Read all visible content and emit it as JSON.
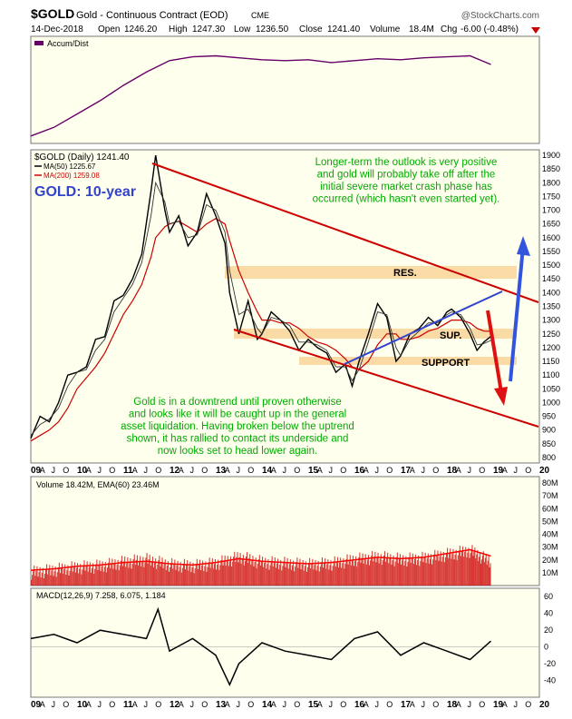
{
  "header": {
    "symbol": "$GOLD",
    "name": "Gold - Continuous Contract (EOD)",
    "exchange": "CME",
    "brand": "@StockCharts.com",
    "date": "14-Dec-2018",
    "open_label": "Open",
    "open": "1246.20",
    "high_label": "High",
    "high": "1247.30",
    "low_label": "Low",
    "low": "1236.50",
    "close_label": "Close",
    "close": "1241.40",
    "volume_label": "Volume",
    "volume": "18.4M",
    "chg_label": "Chg",
    "chg": "-6.00 (-0.48%)"
  },
  "colors": {
    "panel_bg": "#ffffee",
    "accum": "#660066",
    "price": "#000000",
    "ma50": "#000000",
    "ma200": "#cc0000",
    "channel": "#cc0000",
    "uptrend": "#3344cc",
    "band": "#f8ce8c",
    "annotation": "#00aa00",
    "blue_label": "#3344cc",
    "volume_bars": "#cc0000",
    "ema_line": "#ff0000",
    "arrow_up": "#3355dd",
    "arrow_down": "#dd1111"
  },
  "chart_data": [
    {
      "type": "line",
      "panel": "accum",
      "legend": "Accum/Dist",
      "x": [
        2009.0,
        2009.5,
        2010.0,
        2010.5,
        2011.0,
        2011.5,
        2012.0,
        2012.5,
        2013.0,
        2013.5,
        2014.0,
        2014.5,
        2015.0,
        2015.5,
        2016.0,
        2016.5,
        2017.0,
        2017.5,
        2018.0,
        2018.5,
        2018.95
      ],
      "values": [
        5,
        14,
        28,
        42,
        58,
        72,
        84,
        88,
        89,
        87,
        85,
        84,
        85,
        82,
        84,
        86,
        85,
        87,
        88,
        89,
        80
      ]
    },
    {
      "type": "line",
      "panel": "price",
      "legend": "$GOLD (Daily) 1241.40",
      "ma50_legend": "MA(50) 1225.67",
      "ma200_legend": "MA(200) 1259.08",
      "title": "GOLD: 10-year",
      "x": [
        2009.0,
        2009.2,
        2009.4,
        2009.6,
        2009.8,
        2010.0,
        2010.2,
        2010.4,
        2010.6,
        2010.8,
        2011.0,
        2011.2,
        2011.4,
        2011.6,
        2011.7,
        2011.9,
        2012.0,
        2012.2,
        2012.4,
        2012.6,
        2012.8,
        2013.0,
        2013.2,
        2013.3,
        2013.5,
        2013.7,
        2013.9,
        2014.0,
        2014.2,
        2014.4,
        2014.6,
        2014.8,
        2015.0,
        2015.2,
        2015.4,
        2015.6,
        2015.8,
        2015.95,
        2016.1,
        2016.3,
        2016.5,
        2016.7,
        2016.9,
        2017.0,
        2017.2,
        2017.4,
        2017.6,
        2017.8,
        2018.0,
        2018.1,
        2018.3,
        2018.5,
        2018.65,
        2018.8,
        2018.95
      ],
      "values": [
        870,
        950,
        930,
        1000,
        1100,
        1110,
        1130,
        1230,
        1240,
        1370,
        1390,
        1450,
        1540,
        1770,
        1900,
        1700,
        1620,
        1680,
        1570,
        1620,
        1760,
        1680,
        1580,
        1400,
        1250,
        1370,
        1230,
        1250,
        1330,
        1300,
        1260,
        1190,
        1230,
        1200,
        1180,
        1110,
        1140,
        1060,
        1150,
        1250,
        1360,
        1310,
        1150,
        1170,
        1250,
        1270,
        1310,
        1280,
        1330,
        1340,
        1310,
        1250,
        1190,
        1220,
        1241
      ],
      "ma50": [
        880,
        920,
        940,
        980,
        1060,
        1110,
        1120,
        1190,
        1230,
        1330,
        1380,
        1430,
        1510,
        1680,
        1800,
        1730,
        1650,
        1660,
        1600,
        1610,
        1720,
        1700,
        1620,
        1480,
        1320,
        1340,
        1270,
        1250,
        1310,
        1300,
        1280,
        1220,
        1220,
        1210,
        1190,
        1130,
        1130,
        1080,
        1120,
        1220,
        1330,
        1320,
        1200,
        1170,
        1230,
        1260,
        1290,
        1290,
        1320,
        1330,
        1320,
        1270,
        1210,
        1215,
        1226
      ],
      "ma200": [
        860,
        880,
        900,
        930,
        980,
        1050,
        1090,
        1130,
        1180,
        1250,
        1320,
        1370,
        1430,
        1530,
        1600,
        1640,
        1650,
        1660,
        1640,
        1620,
        1650,
        1670,
        1650,
        1590,
        1480,
        1400,
        1330,
        1300,
        1300,
        1290,
        1290,
        1270,
        1240,
        1220,
        1210,
        1190,
        1160,
        1130,
        1120,
        1150,
        1210,
        1250,
        1250,
        1230,
        1230,
        1240,
        1260,
        1270,
        1290,
        1300,
        1300,
        1290,
        1270,
        1260,
        1259
      ],
      "y_ticks": [
        800,
        850,
        900,
        950,
        1000,
        1050,
        1100,
        1150,
        1200,
        1250,
        1300,
        1350,
        1400,
        1450,
        1500,
        1550,
        1600,
        1650,
        1700,
        1750,
        1800,
        1850,
        1900
      ],
      "ylim": [
        780,
        1920
      ]
    },
    {
      "type": "bar",
      "panel": "volume",
      "legend": "Volume 18.42M, EMA(60) 23.46M",
      "x": [
        2009.0,
        2009.5,
        2010.0,
        2010.5,
        2011.0,
        2011.5,
        2012.0,
        2012.5,
        2013.0,
        2013.5,
        2014.0,
        2014.5,
        2015.0,
        2015.5,
        2016.0,
        2016.5,
        2017.0,
        2017.5,
        2018.0,
        2018.5,
        2018.95
      ],
      "values": [
        10,
        12,
        14,
        15,
        18,
        20,
        16,
        15,
        17,
        22,
        18,
        17,
        16,
        17,
        20,
        22,
        20,
        21,
        24,
        27,
        18
      ],
      "ema": [
        12,
        13,
        15,
        16,
        18,
        19,
        17,
        16,
        18,
        21,
        19,
        18,
        17,
        18,
        20,
        22,
        21,
        22,
        25,
        28,
        23
      ],
      "y_ticks": [
        "10M",
        "20M",
        "30M",
        "40M",
        "50M",
        "60M",
        "70M",
        "80M"
      ],
      "ylim": [
        0,
        85
      ]
    },
    {
      "type": "line",
      "panel": "macd",
      "legend": "MACD(12,26,9) 7.258, 6.075, 1.184",
      "x": [
        2009.0,
        2009.5,
        2010.0,
        2010.5,
        2011.0,
        2011.5,
        2011.75,
        2012.0,
        2012.5,
        2013.0,
        2013.3,
        2013.5,
        2014.0,
        2014.5,
        2015.0,
        2015.5,
        2016.0,
        2016.5,
        2017.0,
        2017.5,
        2018.0,
        2018.5,
        2018.95
      ],
      "values": [
        10,
        15,
        5,
        20,
        15,
        10,
        45,
        -5,
        10,
        -10,
        -45,
        -20,
        5,
        -5,
        -10,
        -15,
        10,
        18,
        -10,
        5,
        -5,
        -15,
        7
      ],
      "y_ticks": [
        60,
        40,
        20,
        0,
        -20,
        -40
      ],
      "ylim": [
        -60,
        70
      ]
    }
  ],
  "x_axis": {
    "years": [
      [
        "09",
        2009
      ],
      [
        "10",
        2010
      ],
      [
        "11",
        2011
      ],
      [
        "12",
        2012
      ],
      [
        "13",
        2013
      ],
      [
        "14",
        2014
      ],
      [
        "15",
        2015
      ],
      [
        "16",
        2016
      ],
      [
        "17",
        2017
      ],
      [
        "18",
        2018
      ],
      [
        "19",
        2019
      ],
      [
        "20",
        2020
      ]
    ],
    "months": [
      "A",
      "J",
      "O"
    ]
  },
  "annotations": {
    "top_right": [
      "Longer-term the outlook is very positive",
      "and gold will probably take off after the",
      "initial severe market crash phase has",
      "occurred (which hasn't even started yet)."
    ],
    "bottom_left": [
      "Gold is in a downtrend until proven otherwise",
      "and looks like it will be caught up in the general",
      "asset liquidation. Having broken below the uptrend",
      "shown, it has rallied to contact its underside and",
      "now looks set to head lower again."
    ],
    "res": "RES.",
    "sup": "SUP.",
    "support": "SUPPORT"
  }
}
